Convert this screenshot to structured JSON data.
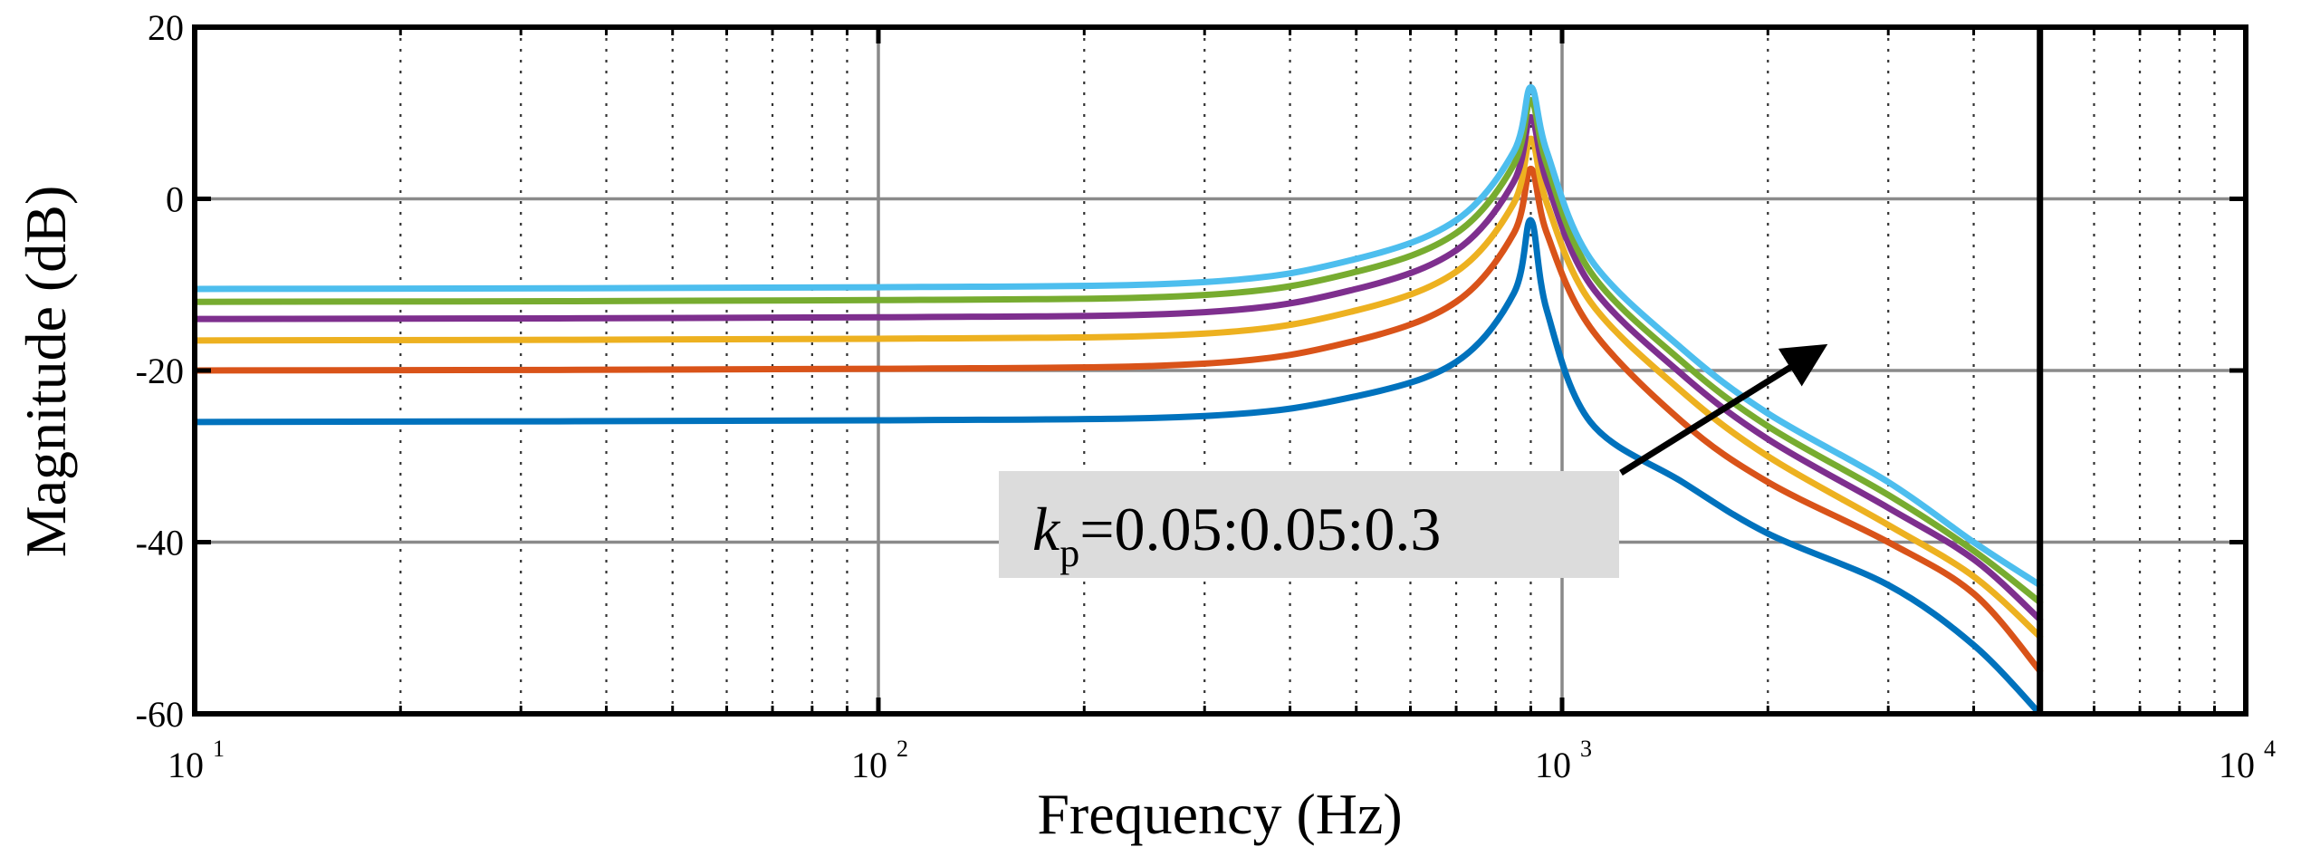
{
  "chart_data": {
    "type": "line",
    "title": "",
    "xlabel": "Frequency  (Hz)",
    "ylabel": "Magnitude (dB)",
    "xscale": "log",
    "xlim": [
      10,
      10000
    ],
    "ylim": [
      -60,
      20
    ],
    "grid": true,
    "x_ticks": [
      {
        "value": 10,
        "base": "10",
        "exp": "1"
      },
      {
        "value": 100,
        "base": "10",
        "exp": "2"
      },
      {
        "value": 1000,
        "base": "10",
        "exp": "3"
      },
      {
        "value": 10000,
        "base": "10",
        "exp": "4"
      }
    ],
    "y_ticks": [
      {
        "value": 20,
        "label": "20"
      },
      {
        "value": 0,
        "label": "0"
      },
      {
        "value": -20,
        "label": "-20"
      },
      {
        "value": -40,
        "label": "-40"
      },
      {
        "value": -60,
        "label": "-60"
      }
    ],
    "nyquist_marker_hz": 5000,
    "resonance_hz": 900,
    "series": [
      {
        "name": "kp=0.05",
        "color": "#0072BD",
        "x": [
          10,
          100,
          300,
          500,
          700,
          850,
          900,
          950,
          1100,
          1500,
          2000,
          3000,
          4000,
          5000
        ],
        "y": [
          -26,
          -25.8,
          -25.3,
          -23,
          -19,
          -11,
          -2.5,
          -13,
          -26,
          -33,
          -39,
          -45,
          -52,
          -60
        ]
      },
      {
        "name": "kp=0.10",
        "color": "#D95319",
        "x": [
          10,
          100,
          300,
          500,
          700,
          850,
          900,
          950,
          1100,
          1500,
          2000,
          3000,
          4000,
          5000
        ],
        "y": [
          -20,
          -19.8,
          -19.2,
          -16.5,
          -12,
          -4,
          3.5,
          -4,
          -15,
          -26,
          -33,
          -40,
          -46,
          -55
        ]
      },
      {
        "name": "kp=0.15",
        "color": "#EDB120",
        "x": [
          10,
          100,
          300,
          500,
          700,
          850,
          900,
          950,
          1100,
          1500,
          2000,
          3000,
          4000,
          5000
        ],
        "y": [
          -16.5,
          -16.3,
          -15.7,
          -13,
          -8.5,
          -0.5,
          7,
          -0.5,
          -12,
          -22.5,
          -30,
          -38,
          -44,
          -51
        ]
      },
      {
        "name": "kp=0.20",
        "color": "#7E2F8E",
        "x": [
          10,
          100,
          300,
          500,
          700,
          850,
          900,
          950,
          1100,
          1500,
          2000,
          3000,
          4000,
          5000
        ],
        "y": [
          -14,
          -13.8,
          -13.2,
          -10.5,
          -6,
          2,
          9.5,
          2,
          -10,
          -20.5,
          -28,
          -36,
          -42,
          -49
        ]
      },
      {
        "name": "kp=0.25",
        "color": "#77AC30",
        "x": [
          10,
          100,
          300,
          500,
          700,
          850,
          900,
          950,
          1100,
          1500,
          2000,
          3000,
          4000,
          5000
        ],
        "y": [
          -12,
          -11.8,
          -11.2,
          -8.5,
          -4,
          4,
          11.5,
          4,
          -8.5,
          -19,
          -26.5,
          -34.5,
          -41,
          -47
        ]
      },
      {
        "name": "kp=0.30",
        "color": "#4DBEEE",
        "x": [
          10,
          100,
          300,
          500,
          700,
          850,
          900,
          950,
          1100,
          1500,
          2000,
          3000,
          4000,
          5000
        ],
        "y": [
          -10.5,
          -10.3,
          -9.7,
          -7,
          -2.5,
          5.5,
          13,
          5.5,
          -7,
          -17.5,
          -25,
          -33,
          -40,
          -45
        ]
      }
    ],
    "annotation": {
      "k": "k",
      "sub": "p",
      "rest": "=0.05:0.05:0.3",
      "box_color": "#DCDCDC",
      "arrow_direction": "toward increasing kp"
    }
  }
}
